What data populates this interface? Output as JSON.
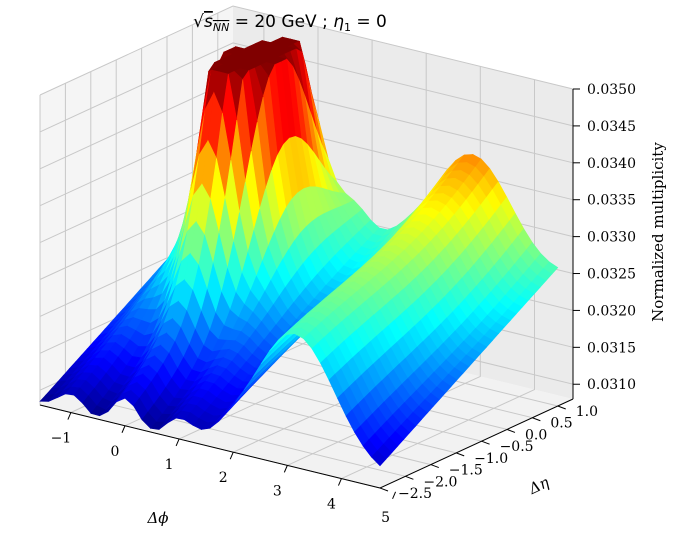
{
  "chart_data": {
    "type": "surface3d",
    "title": "√s_NN = 20 GeV ; η₁ = 0",
    "title_parts": {
      "sqrt": "√",
      "s": "s",
      "sub": "NN",
      "rest": " = 20 GeV ; ",
      "eta": "η",
      "eta_sub": "1",
      "eq": " = 0"
    },
    "xlabel": "Δϕ",
    "ylabel": "Δη",
    "zlabel": "Normalized multiplicity",
    "xlim": [
      -1.5708,
      4.7124
    ],
    "ylim": [
      -2.5,
      1.3
    ],
    "zlim": [
      0.0308,
      0.035
    ],
    "x_ticks": [
      "−1",
      "0",
      "1",
      "2",
      "3",
      "4",
      "5"
    ],
    "y_ticks": [
      "−2.5",
      "−2.0",
      "−1.5",
      "−1.0",
      "−0.5",
      "0.0",
      "0.5",
      "1.0"
    ],
    "z_ticks": [
      "0.0310",
      "0.0315",
      "0.0320",
      "0.0325",
      "0.0330",
      "0.0335",
      "0.0340",
      "0.0345",
      "0.0350"
    ],
    "colormap": "jet",
    "surface_summary": {
      "near_side_peak": {
        "dphi": 0.0,
        "deta": 0.0,
        "value": 0.035,
        "note": "clipped flat top"
      },
      "away_side_ridge": {
        "dphi": 3.1416,
        "value_range": [
          0.0328,
          0.0332
        ]
      },
      "minimum": {
        "value": 0.031
      }
    },
    "grid": true,
    "pane_color": "#f2f2f2"
  }
}
